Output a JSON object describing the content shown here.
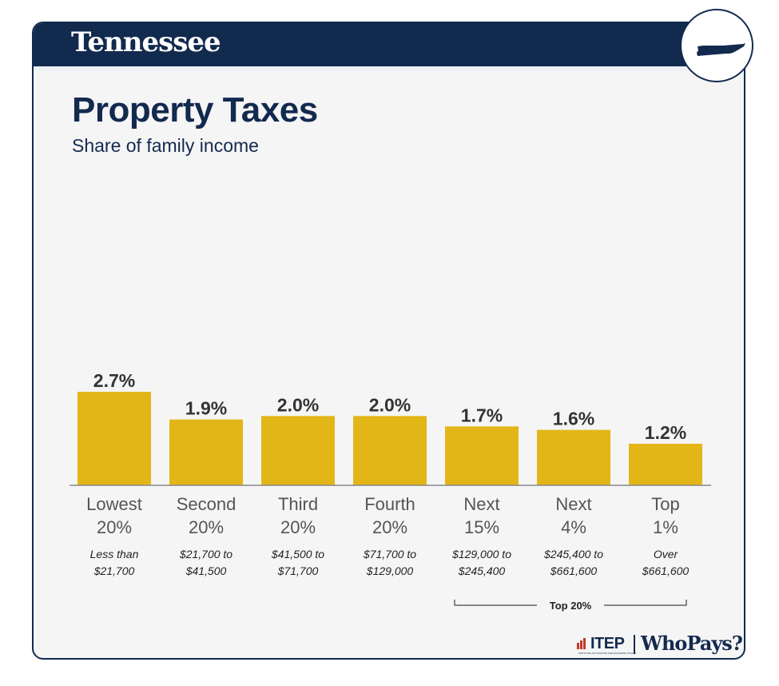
{
  "header": {
    "state": "Tennessee",
    "state_icon": "tennessee-map-icon"
  },
  "title": "Property Taxes",
  "subtitle": "Share of family income",
  "colors": {
    "navy": "#132a4f",
    "bar": "#e3b618",
    "background": "#f5f5f5"
  },
  "chart_data": {
    "type": "bar",
    "title": "Property Taxes",
    "subtitle": "Share of family income",
    "categories": [
      {
        "line1": "Lowest",
        "line2": "20%",
        "range1": "Less than",
        "range2": "$21,700"
      },
      {
        "line1": "Second",
        "line2": "20%",
        "range1": "$21,700 to",
        "range2": "$41,500"
      },
      {
        "line1": "Third",
        "line2": "20%",
        "range1": "$41,500 to",
        "range2": "$71,700"
      },
      {
        "line1": "Fourth",
        "line2": "20%",
        "range1": "$71,700 to",
        "range2": "$129,000"
      },
      {
        "line1": "Next",
        "line2": "15%",
        "range1": "$129,000 to",
        "range2": "$245,400"
      },
      {
        "line1": "Next",
        "line2": "4%",
        "range1": "$245,400 to",
        "range2": "$661,600"
      },
      {
        "line1": "Top",
        "line2": "1%",
        "range1": "Over",
        "range2": "$661,600"
      }
    ],
    "values": [
      2.7,
      1.9,
      2.0,
      2.0,
      1.7,
      1.6,
      1.2
    ],
    "value_labels": [
      "2.7%",
      "1.9%",
      "2.0%",
      "2.0%",
      "1.7%",
      "1.6%",
      "1.2%"
    ],
    "unit": "%",
    "ylim": [
      0,
      3
    ],
    "grid": false,
    "bracket": {
      "label": "Top 20%",
      "from_index": 4,
      "to_index": 6
    }
  },
  "footer": {
    "logo_primary": "ITEP",
    "logo_small": "INSTITUTE ON TAXATION AND ECONOMIC POLICY",
    "logo_secondary": "WhoPays?"
  }
}
